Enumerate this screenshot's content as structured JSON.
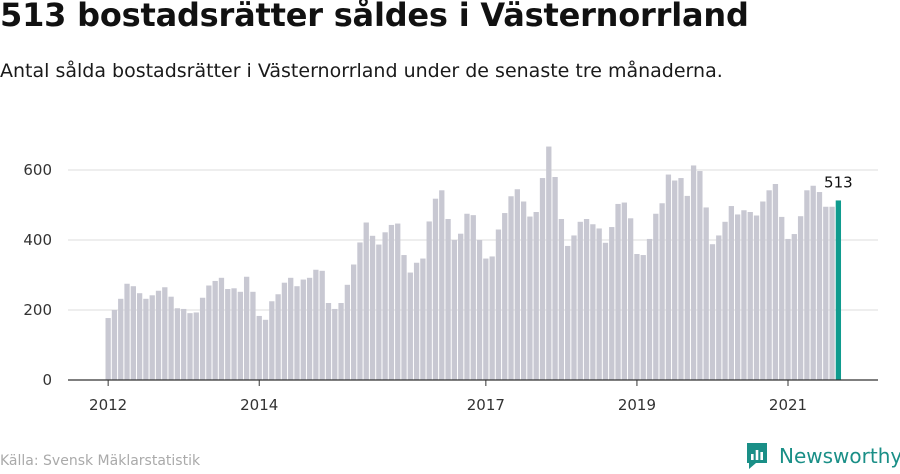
{
  "header": {
    "title": "513 bostadsrätter såldes i Västernorrland",
    "subtitle": "Antal sålda bostadsrätter i Västernorrland under de senaste tre månaderna."
  },
  "footer": {
    "source": "Källa: Svensk Mäklarstatistik",
    "brand": "Newsworthy",
    "brand_icon": "newsworthy-logo-icon"
  },
  "colors": {
    "bar": "#c8c8d2",
    "highlight": "#0f9b8e",
    "grid": "#dddddd",
    "axis": "#333333",
    "brand": "#1a8f87"
  },
  "chart_data": {
    "type": "bar",
    "title": "",
    "xlabel": "",
    "ylabel": "",
    "ylim": [
      0,
      700
    ],
    "yticks": [
      0,
      200,
      400,
      600
    ],
    "grid": true,
    "x_start": "2012-01",
    "x_tick_labels": [
      {
        "label": "2012",
        "index": 0
      },
      {
        "label": "2014",
        "index": 24
      },
      {
        "label": "2017",
        "index": 60
      },
      {
        "label": "2019",
        "index": 84
      },
      {
        "label": "2021",
        "index": 108
      }
    ],
    "values": [
      177,
      200,
      232,
      275,
      268,
      248,
      232,
      242,
      255,
      265,
      238,
      205,
      203,
      191,
      193,
      235,
      270,
      283,
      292,
      260,
      262,
      252,
      295,
      252,
      183,
      172,
      225,
      245,
      278,
      292,
      268,
      287,
      292,
      315,
      312,
      220,
      203,
      220,
      272,
      330,
      393,
      450,
      412,
      387,
      422,
      443,
      447,
      357,
      307,
      335,
      347,
      453,
      518,
      542,
      460,
      400,
      418,
      475,
      471,
      400,
      347,
      353,
      430,
      477,
      525,
      545,
      510,
      467,
      480,
      577,
      667,
      580,
      460,
      383,
      413,
      452,
      460,
      445,
      433,
      392,
      437,
      503,
      507,
      462,
      360,
      357,
      403,
      475,
      505,
      587,
      570,
      577,
      526,
      613,
      597,
      493,
      388,
      413,
      452,
      497,
      473,
      485,
      480,
      470,
      510,
      542,
      560,
      466,
      403,
      417,
      468,
      542,
      555,
      537,
      495,
      495,
      513
    ],
    "highlight_index": 116,
    "highlight_label": "513",
    "annotations": [
      {
        "index": 116,
        "text": "513"
      }
    ]
  }
}
